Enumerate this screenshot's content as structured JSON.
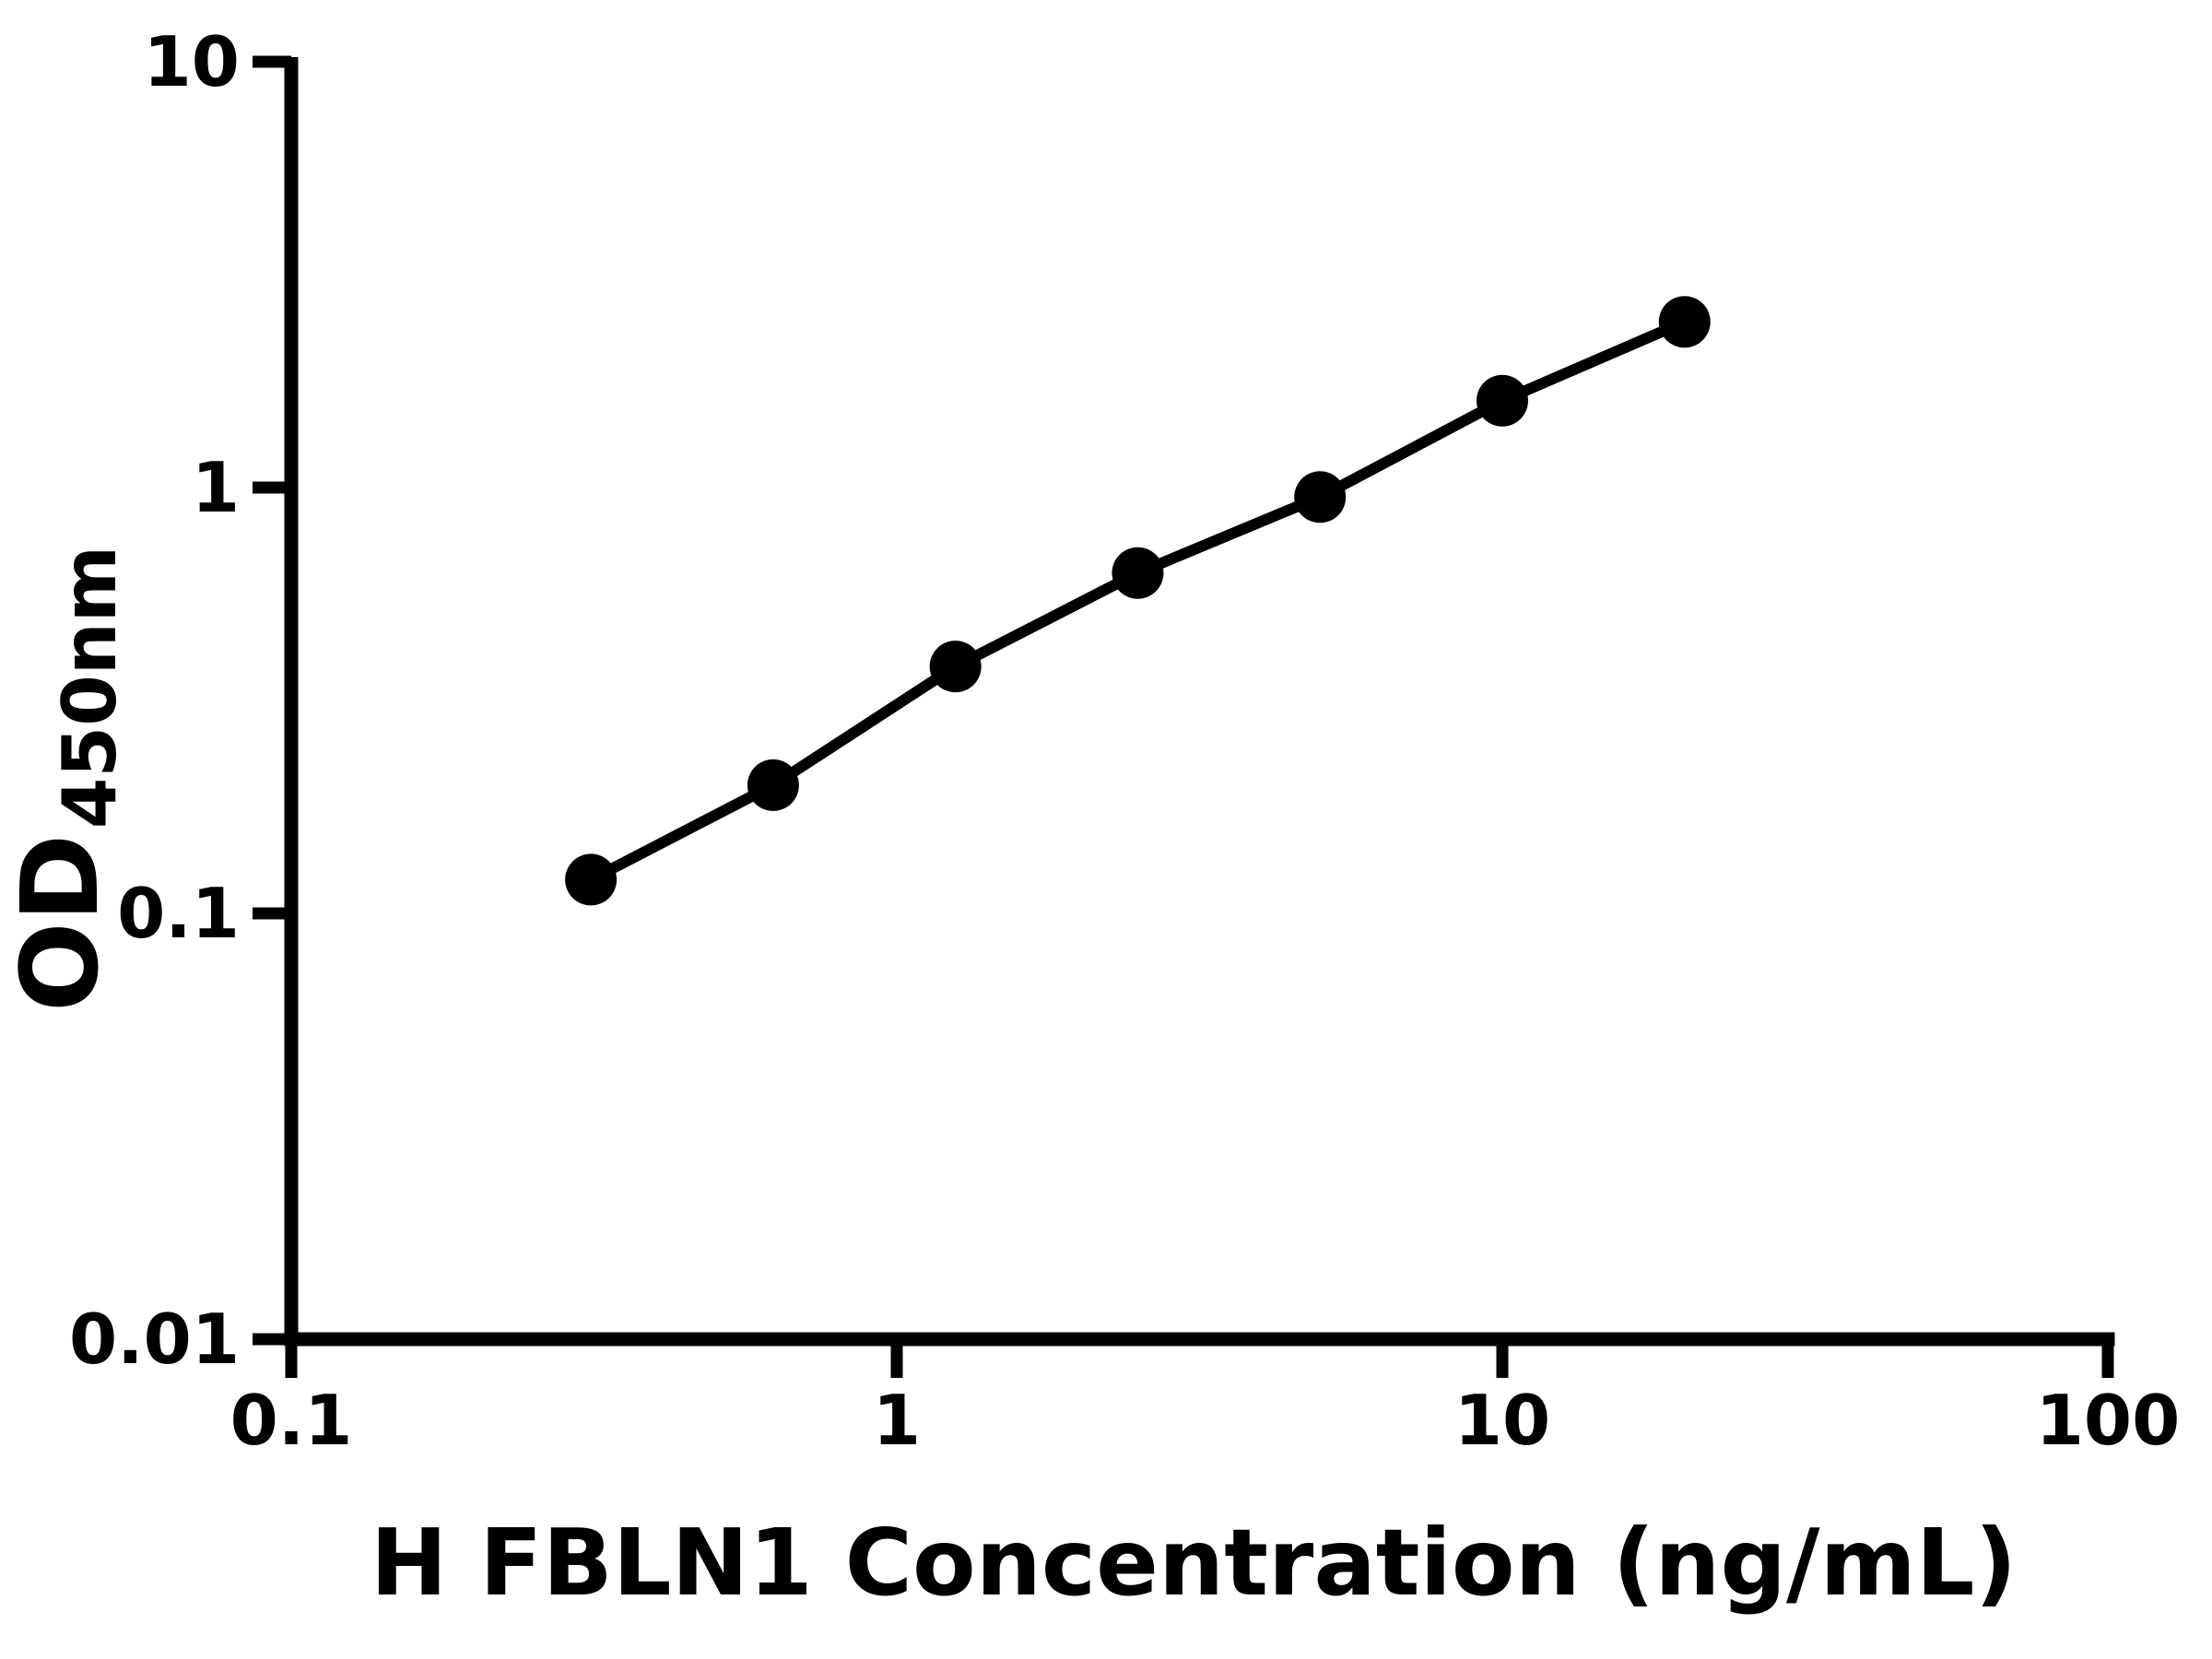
{
  "figure": {
    "background_color": "#ffffff",
    "foreground_color": "#000000"
  },
  "chart_data": {
    "type": "scatter",
    "series": [
      {
        "name": "standard-curve",
        "x": [
          0.3125,
          0.625,
          1.25,
          2.5,
          5,
          10,
          20
        ],
        "y": [
          0.12,
          0.2,
          0.38,
          0.63,
          0.95,
          1.6,
          2.45
        ]
      }
    ],
    "title": "",
    "xlabel": "H FBLN1 Concentration (ng/mL)",
    "ylabel": "OD",
    "ylabel_subscript": "450nm",
    "xscale": "log",
    "yscale": "log",
    "xlim": [
      0.1,
      100
    ],
    "ylim": [
      0.01,
      10
    ],
    "x_ticks": [
      "0.1",
      "1",
      "10",
      "100"
    ],
    "y_ticks": [
      "10",
      "1",
      "0.1",
      "0.01"
    ],
    "grid": false,
    "legend": "none",
    "line_color": "#000000",
    "marker_color": "#000000",
    "marker_shape": "circle"
  }
}
